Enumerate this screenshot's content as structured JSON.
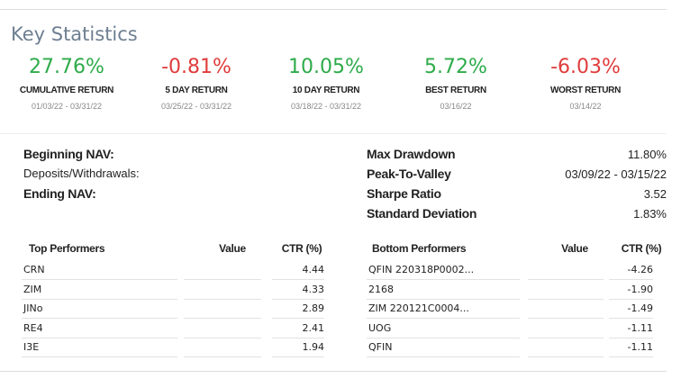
{
  "header": {
    "title": "Key Statistics"
  },
  "stats": [
    {
      "value": "27.76%",
      "label": "CUMULATIVE RETURN",
      "date": "01/03/22 - 03/31/22",
      "color": "#2eab4a"
    },
    {
      "value": "-0.81%",
      "label": "5 DAY RETURN",
      "date": "03/25/22 - 03/31/22",
      "color": "#e03c3c"
    },
    {
      "value": "10.05%",
      "label": "10 DAY RETURN",
      "date": "03/18/22 - 03/31/22",
      "color": "#2eab4a"
    },
    {
      "value": "5.72%",
      "label": "BEST RETURN",
      "date": "03/16/22",
      "color": "#2eab4a"
    },
    {
      "value": "-6.03%",
      "label": "WORST RETURN",
      "date": "03/14/22",
      "color": "#e03c3c"
    }
  ],
  "nav": [
    "Beginning NAV:",
    "Deposits/Withdrawals:",
    "Ending NAV:"
  ],
  "metrics": [
    {
      "label": "Max Drawdown",
      "value": "11.80%"
    },
    {
      "label": "Peak-To-Valley",
      "value": "03/09/22 - 03/15/22"
    },
    {
      "label": "Sharpe Ratio",
      "value": "3.52"
    },
    {
      "label": "Standard Deviation",
      "value": "1.83%"
    }
  ],
  "tables": [
    {
      "headers": [
        "Top Performers",
        "Value",
        "CTR (%)"
      ],
      "rows": [
        {
          "name": "CRN",
          "ctr": "4.44"
        },
        {
          "name": "ZIM",
          "ctr": "4.33"
        },
        {
          "name": "JINo",
          "ctr": "2.89"
        },
        {
          "name": "RE4",
          "ctr": "2.41"
        },
        {
          "name": "I3E",
          "ctr": "1.94"
        }
      ]
    },
    {
      "headers": [
        "Bottom Performers",
        "Value",
        "CTR (%)"
      ],
      "rows": [
        {
          "name": "QFIN  220318P0002...",
          "ctr": "-4.26"
        },
        {
          "name": "2168",
          "ctr": "-1.90"
        },
        {
          "name": "ZIM  220121C0004...",
          "ctr": "-1.49"
        },
        {
          "name": "UOG",
          "ctr": "-1.11"
        },
        {
          "name": "QFIN",
          "ctr": "-1.11"
        }
      ]
    }
  ]
}
